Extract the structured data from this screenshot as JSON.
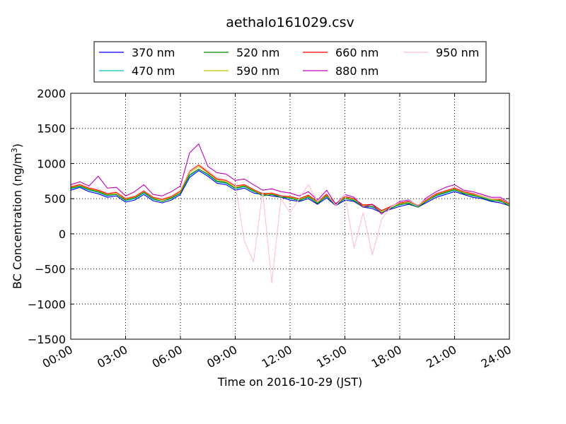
{
  "chart_data": {
    "type": "line",
    "title": "aethalo161029.csv",
    "xlabel": "Time on 2016-10-29 (JST)",
    "ylabel_main": "BC Concentration (ng/m",
    "ylabel_sup": "3",
    "ylabel_close": ")",
    "x_ticks": [
      "00:00",
      "03:00",
      "06:00",
      "09:00",
      "12:00",
      "15:00",
      "18:00",
      "21:00",
      "24:00"
    ],
    "y_ticks": [
      "2000",
      "1500",
      "1000",
      "500",
      "0",
      "−500",
      "−1000",
      "−1500"
    ],
    "y_tick_values": [
      2000,
      1500,
      1000,
      500,
      0,
      -500,
      -1000,
      -1500
    ],
    "xlim_hours": [
      0,
      24
    ],
    "ylim": [
      -1500,
      2000
    ],
    "grid": true,
    "legend_position": "top-center",
    "x_hours": [
      0,
      0.5,
      1,
      1.5,
      2,
      2.5,
      3,
      3.5,
      4,
      4.5,
      5,
      5.5,
      6,
      6.5,
      7,
      7.5,
      8,
      8.5,
      9,
      9.5,
      10,
      10.5,
      11,
      11.5,
      12,
      12.5,
      13,
      13.5,
      14,
      14.5,
      15,
      15.5,
      16,
      16.5,
      17,
      17.5,
      18,
      18.5,
      19,
      19.5,
      20,
      20.5,
      21,
      21.5,
      22,
      22.5,
      23,
      23.5,
      24
    ],
    "series": [
      {
        "name": "370 nm",
        "color": "#0000ff",
        "values": [
          620,
          660,
          600,
          570,
          520,
          540,
          450,
          480,
          560,
          470,
          440,
          480,
          560,
          800,
          900,
          820,
          720,
          700,
          620,
          650,
          580,
          560,
          540,
          520,
          480,
          460,
          500,
          420,
          510,
          400,
          480,
          460,
          380,
          360,
          300,
          350,
          390,
          420,
          380,
          450,
          520,
          560,
          600,
          560,
          520,
          500,
          460,
          440,
          400
        ]
      },
      {
        "name": "470 nm",
        "color": "#00bfbf",
        "values": [
          640,
          670,
          620,
          590,
          540,
          560,
          470,
          500,
          580,
          490,
          460,
          500,
          580,
          820,
          920,
          840,
          740,
          720,
          640,
          670,
          600,
          580,
          560,
          540,
          500,
          480,
          520,
          440,
          530,
          420,
          500,
          480,
          400,
          380,
          320,
          370,
          410,
          440,
          400,
          470,
          540,
          580,
          620,
          580,
          540,
          520,
          480,
          460,
          420
        ]
      },
      {
        "name": "520 nm",
        "color": "#008000",
        "values": [
          650,
          680,
          630,
          600,
          550,
          560,
          480,
          510,
          590,
          500,
          460,
          510,
          580,
          840,
          920,
          850,
          750,
          730,
          650,
          680,
          610,
          540,
          560,
          520,
          510,
          470,
          530,
          430,
          540,
          400,
          510,
          470,
          380,
          390,
          300,
          360,
          420,
          430,
          380,
          470,
          550,
          590,
          630,
          570,
          550,
          510,
          470,
          470,
          400
        ]
      },
      {
        "name": "590 nm",
        "color": "#bfbf00",
        "values": [
          660,
          690,
          640,
          610,
          560,
          580,
          490,
          520,
          600,
          510,
          480,
          520,
          600,
          870,
          960,
          870,
          770,
          740,
          660,
          690,
          620,
          560,
          570,
          540,
          520,
          490,
          540,
          450,
          550,
          420,
          520,
          490,
          400,
          410,
          320,
          380,
          430,
          450,
          400,
          480,
          560,
          600,
          640,
          590,
          560,
          530,
          490,
          480,
          420
        ]
      },
      {
        "name": "660 nm",
        "color": "#ff0000",
        "values": [
          670,
          700,
          650,
          620,
          570,
          590,
          500,
          530,
          610,
          520,
          490,
          530,
          610,
          890,
          980,
          880,
          780,
          760,
          680,
          700,
          630,
          570,
          580,
          540,
          530,
          500,
          550,
          460,
          560,
          430,
          530,
          500,
          410,
          420,
          330,
          390,
          440,
          460,
          410,
          490,
          570,
          610,
          650,
          600,
          570,
          540,
          500,
          490,
          430
        ]
      },
      {
        "name": "880 nm",
        "color": "#bf00bf",
        "values": [
          700,
          740,
          680,
          820,
          650,
          660,
          540,
          600,
          700,
          560,
          540,
          600,
          680,
          1150,
          1280,
          960,
          870,
          850,
          760,
          780,
          700,
          620,
          640,
          600,
          580,
          540,
          600,
          480,
          620,
          420,
          560,
          520,
          380,
          420,
          280,
          380,
          460,
          480,
          400,
          520,
          600,
          660,
          700,
          620,
          600,
          560,
          520,
          520,
          440
        ]
      },
      {
        "name": "950 nm",
        "color": "#ffc0cb",
        "values": [
          680,
          710,
          660,
          640,
          580,
          600,
          510,
          540,
          620,
          530,
          500,
          540,
          620,
          900,
          990,
          900,
          800,
          770,
          700,
          -100,
          -400,
          600,
          -700,
          500,
          300,
          500,
          700,
          460,
          580,
          400,
          560,
          -200,
          300,
          -300,
          200,
          380,
          450,
          470,
          410,
          500,
          580,
          620,
          660,
          610,
          580,
          540,
          500,
          500,
          440
        ]
      }
    ]
  }
}
